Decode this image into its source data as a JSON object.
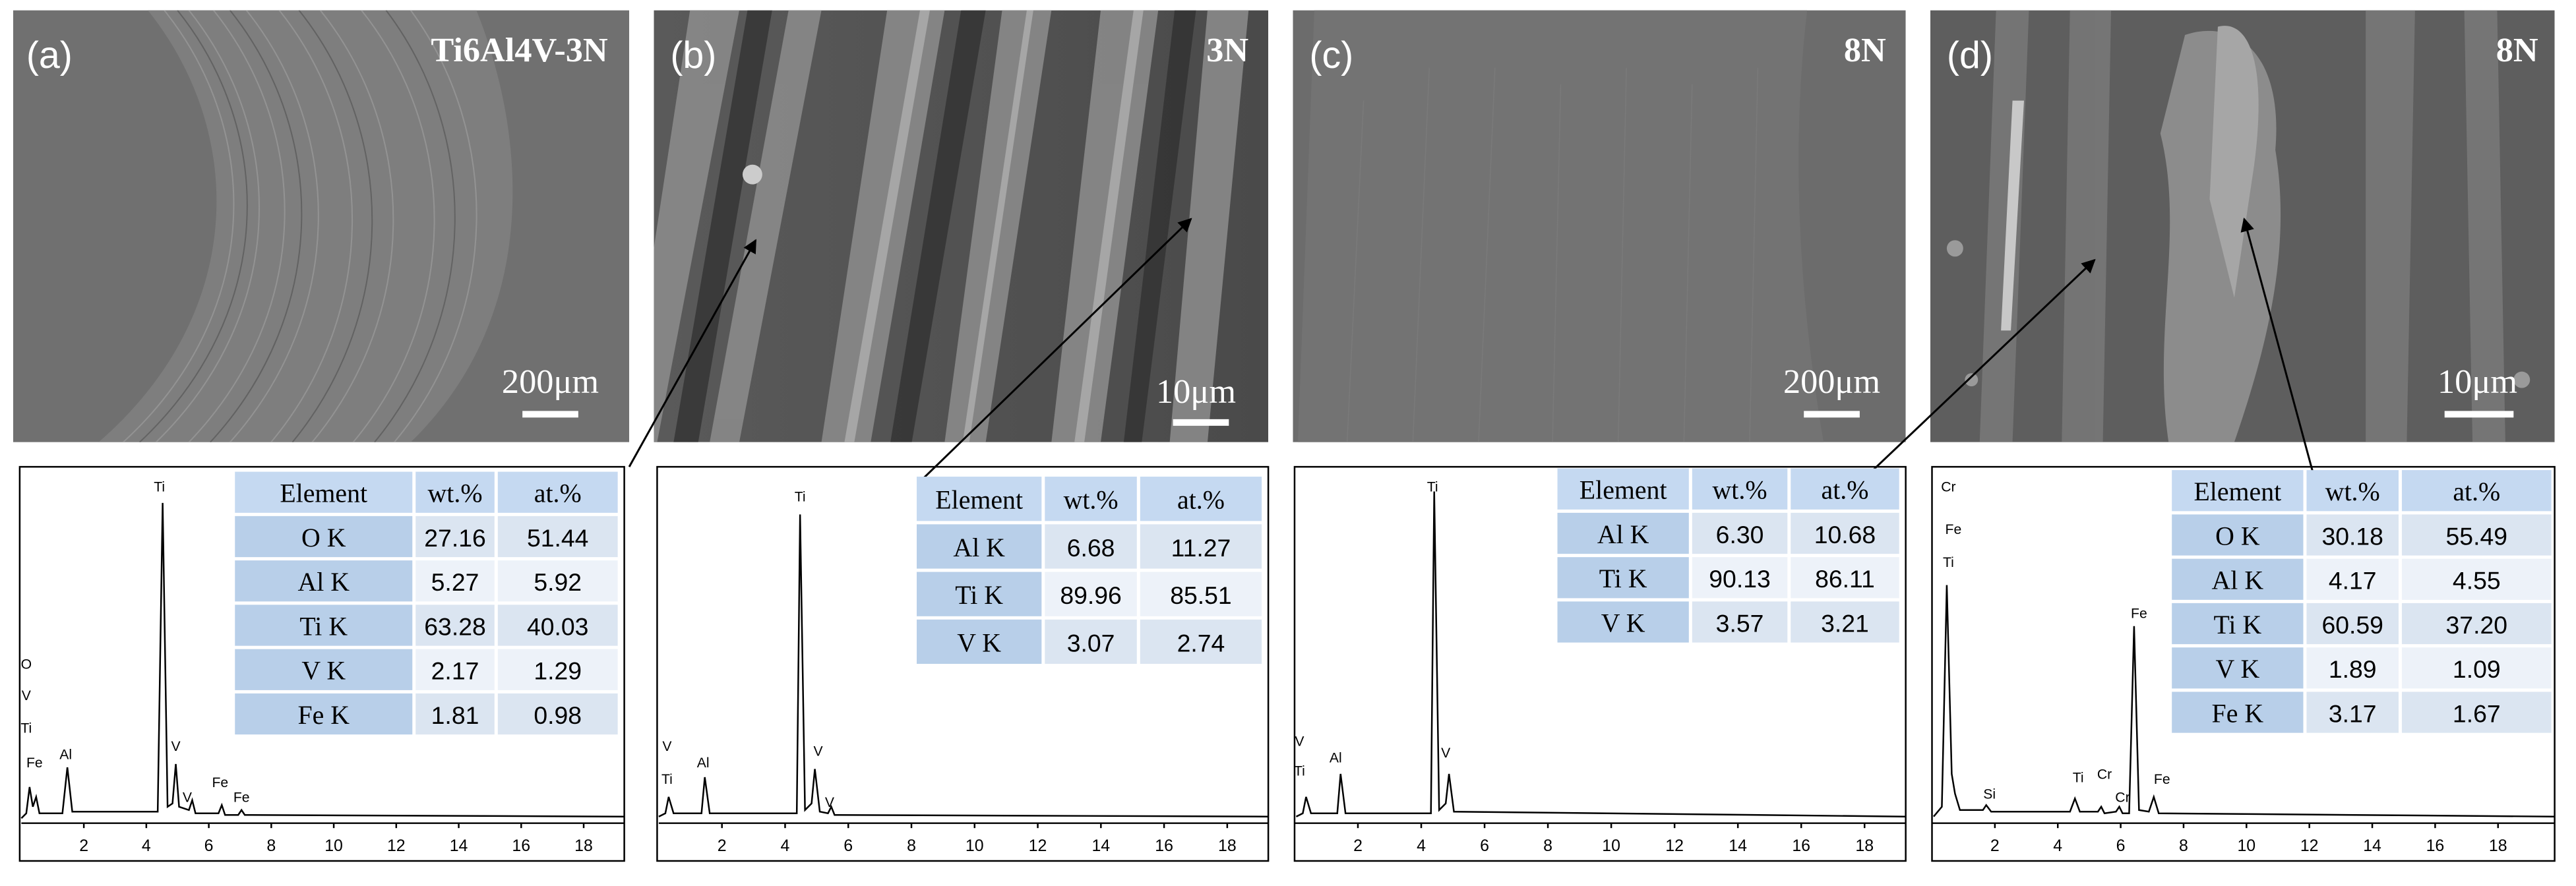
{
  "panels": [
    {
      "label": "(a)",
      "title": "Ti6Al4V-3N",
      "scale_bar": "200μm",
      "table": {
        "header": [
          "Element",
          "wt.%",
          "at.%"
        ],
        "rows": [
          [
            "O K",
            "27.16",
            "51.44"
          ],
          [
            "Al K",
            "5.27",
            "5.92"
          ],
          [
            "Ti K",
            "63.28",
            "40.03"
          ],
          [
            "V K",
            "2.17",
            "1.29"
          ],
          [
            "Fe K",
            "1.81",
            "0.98"
          ]
        ]
      },
      "spectrum": {
        "xlim": [
          0,
          19.3
        ],
        "xticks": [
          2,
          4,
          6,
          8,
          10,
          12,
          14,
          16,
          18
        ],
        "peak_labels": [
          "Ti",
          "O",
          "V",
          "Ti",
          "Fe",
          "Al",
          "V",
          "V",
          "Fe",
          "Fe"
        ]
      }
    },
    {
      "label": "(b)",
      "title": "3N",
      "scale_bar": "10μm",
      "table": {
        "header": [
          "Element",
          "wt.%",
          "at.%"
        ],
        "rows": [
          [
            "Al K",
            "6.68",
            "11.27"
          ],
          [
            "Ti K",
            "89.96",
            "85.51"
          ],
          [
            "V K",
            "3.07",
            "2.74"
          ]
        ]
      },
      "spectrum": {
        "xlim": [
          0,
          19.3
        ],
        "xticks": [
          2,
          4,
          6,
          8,
          10,
          12,
          14,
          16,
          18
        ],
        "peak_labels": [
          "Ti",
          "V",
          "Ti",
          "Al",
          "V",
          "V"
        ]
      }
    },
    {
      "label": "(c)",
      "title": "8N",
      "scale_bar": "200μm",
      "table": {
        "header": [
          "Element",
          "wt.%",
          "at.%"
        ],
        "rows": [
          [
            "Al K",
            "6.30",
            "10.68"
          ],
          [
            "Ti K",
            "90.13",
            "86.11"
          ],
          [
            "V K",
            "3.57",
            "3.21"
          ]
        ]
      },
      "spectrum": {
        "xlim": [
          0,
          19.3
        ],
        "xticks": [
          2,
          4,
          6,
          8,
          10,
          12,
          14,
          16,
          18
        ],
        "peak_labels": [
          "Ti",
          "V",
          "Ti",
          "Al",
          "V"
        ]
      }
    },
    {
      "label": "(d)",
      "title": "8N",
      "scale_bar": "10μm",
      "table": {
        "header": [
          "Element",
          "wt.%",
          "at.%"
        ],
        "rows": [
          [
            "O K",
            "30.18",
            "55.49"
          ],
          [
            "Al K",
            "4.17",
            "4.55"
          ],
          [
            "Ti K",
            "60.59",
            "37.20"
          ],
          [
            "V K",
            "1.89",
            "1.09"
          ],
          [
            "Fe K",
            "3.17",
            "1.67"
          ]
        ]
      },
      "spectrum": {
        "xlim": [
          0,
          19.8
        ],
        "xticks": [
          2,
          4,
          6,
          8,
          10,
          12,
          14,
          16,
          18
        ],
        "peak_labels": [
          "Cr",
          "Fe",
          "Ti",
          "Si",
          "Ti",
          "Cr",
          "Cr",
          "Fe",
          "Fe"
        ]
      }
    }
  ]
}
